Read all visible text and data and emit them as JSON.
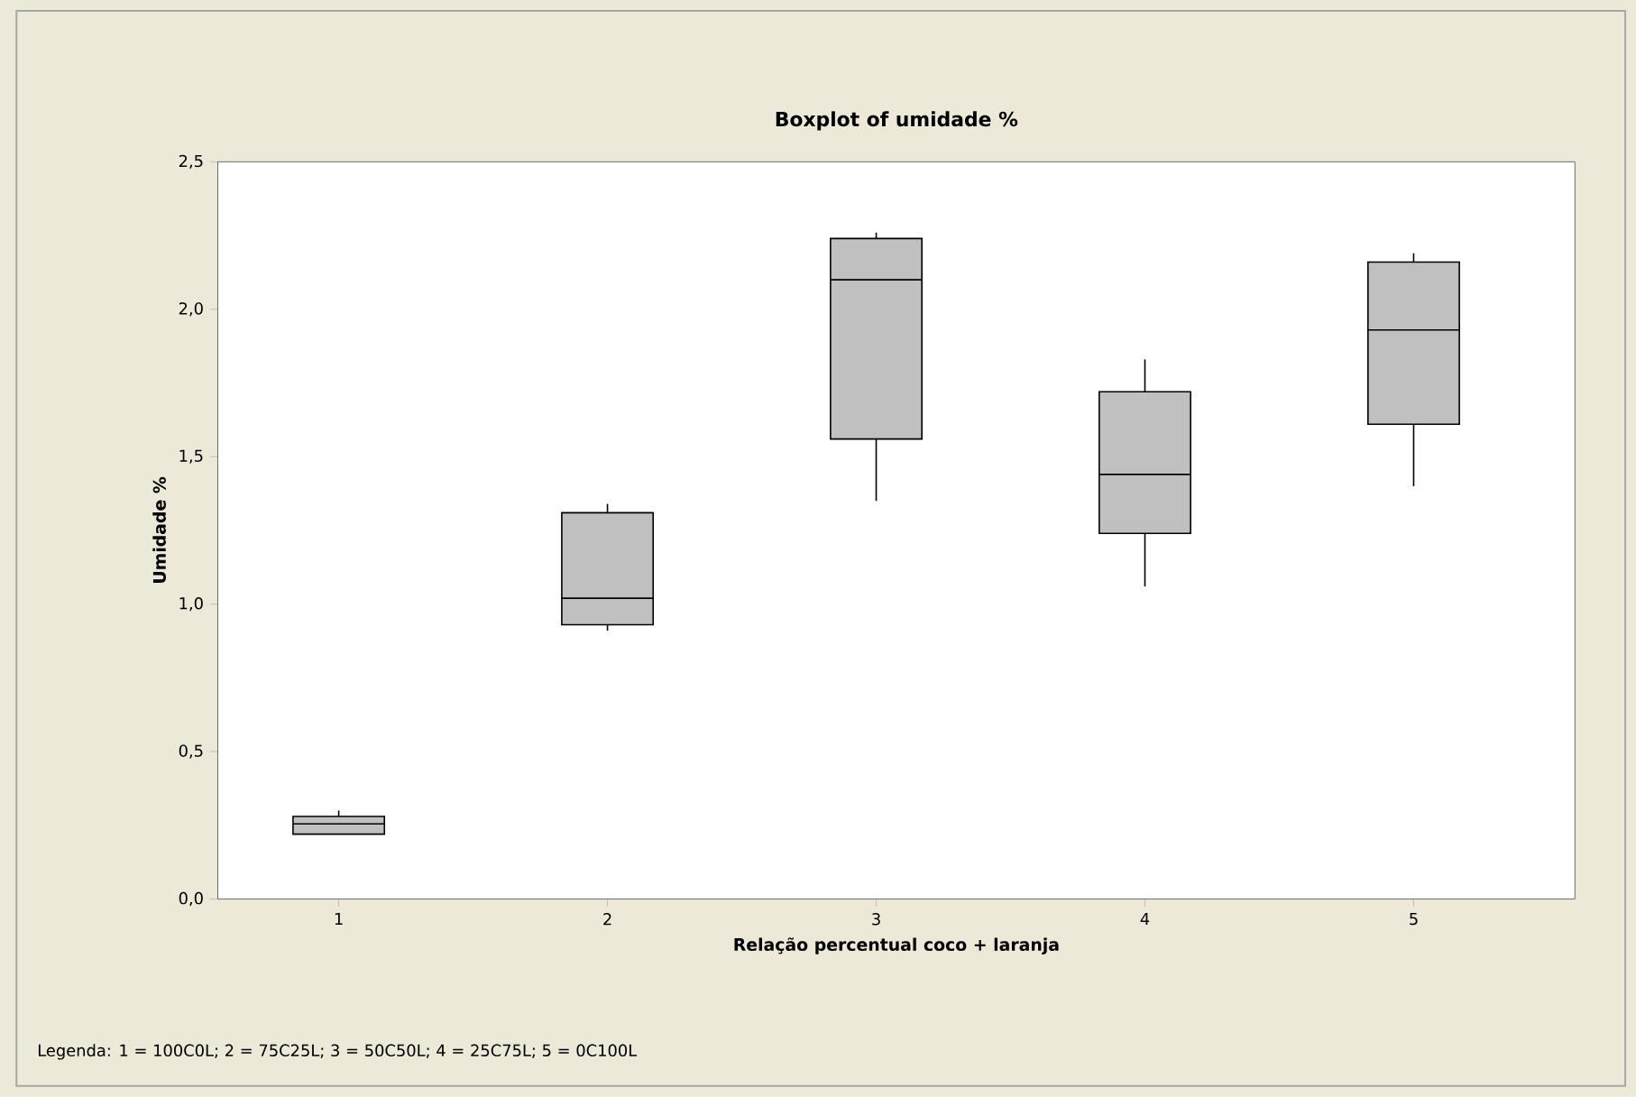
{
  "chart_data": {
    "type": "box",
    "title": "Boxplot of umidade %",
    "xlabel": "Relação percentual coco + laranja",
    "ylabel": "Umidade %",
    "categories": [
      "1",
      "2",
      "3",
      "4",
      "5"
    ],
    "color": "#c0c0c0",
    "boxes": [
      {
        "low": 0.22,
        "q1": 0.22,
        "median": 0.255,
        "q3": 0.28,
        "high": 0.3
      },
      {
        "low": 0.91,
        "q1": 0.93,
        "median": 1.02,
        "q3": 1.31,
        "high": 1.34
      },
      {
        "low": 1.35,
        "q1": 1.56,
        "median": 2.1,
        "q3": 2.24,
        "high": 2.26
      },
      {
        "low": 1.06,
        "q1": 1.24,
        "median": 1.44,
        "q3": 1.72,
        "high": 1.83
      },
      {
        "low": 1.4,
        "q1": 1.61,
        "median": 1.93,
        "q3": 2.16,
        "high": 2.19
      }
    ],
    "ylim": [
      0,
      2.5
    ],
    "yticks": [
      {
        "value": 0,
        "label": "0,0"
      },
      {
        "value": 0.5,
        "label": "0,5"
      },
      {
        "value": 1.0,
        "label": "1,0"
      },
      {
        "value": 1.5,
        "label": "1,5"
      },
      {
        "value": 2.0,
        "label": "2,0"
      },
      {
        "value": 2.5,
        "label": "2,5"
      }
    ],
    "grid": false,
    "annotations": [
      "Legenda: 1 = 100C0L; 2 = 75C25L; 3 = 50C50L; 4 = 25C75L; 5 = 0C100L"
    ]
  }
}
